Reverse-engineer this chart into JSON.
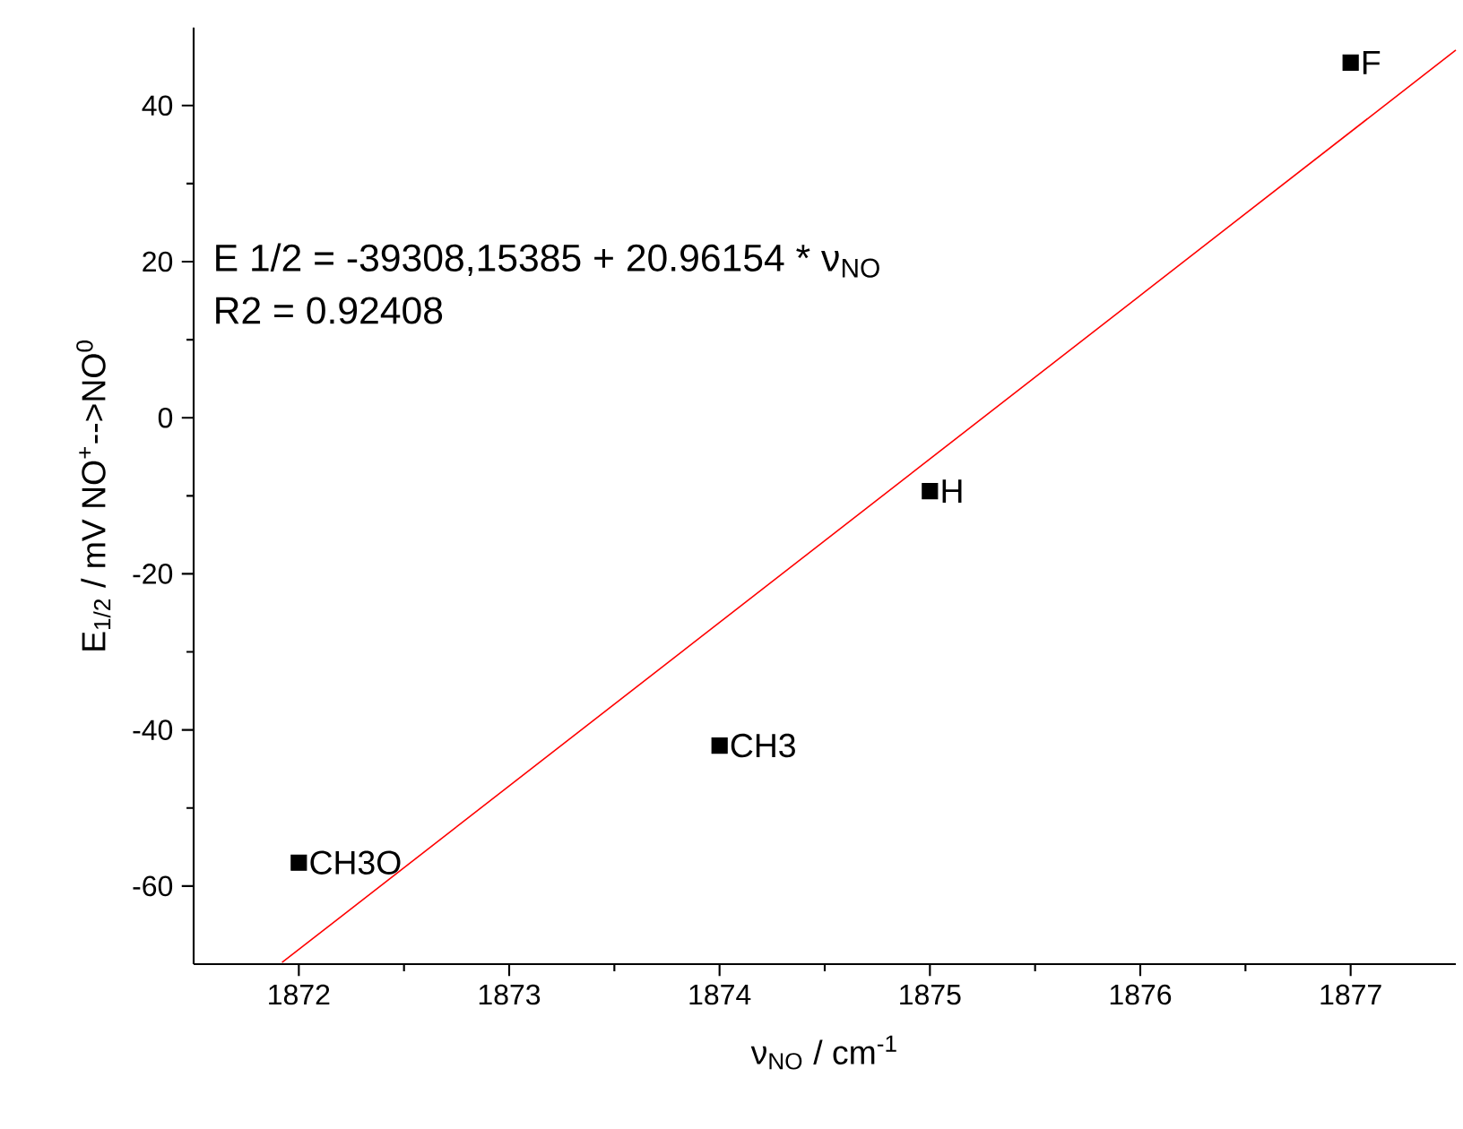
{
  "chart_data": {
    "type": "scatter",
    "xlabel": "ν$_{NO}$ / cm$^{-1}$",
    "ylabel": "E$_{1/2}$ / mV NO$^{+}$-->NO$^{0}$",
    "xlim": [
      1871.5,
      1877.5
    ],
    "ylim": [
      -70,
      50
    ],
    "xticks": [
      1872,
      1873,
      1874,
      1875,
      1876,
      1877
    ],
    "yticks": [
      -60,
      -40,
      -20,
      0,
      20,
      40
    ],
    "grid": false,
    "legend": false,
    "series": [
      {
        "x": [
          1872,
          1874,
          1875,
          1877
        ],
        "values": [
          -57,
          -42,
          -9.4,
          45.5
        ],
        "color": "#000000",
        "marker": "square"
      },
      {
        "type": "line",
        "x": [
          1871.92,
          1877.5
        ],
        "values": [
          -69.8,
          47.1
        ],
        "color": "#ff0000",
        "marker": "none",
        "line_style": "solid"
      }
    ],
    "annotations": [
      "E 1/2 = -39308,15385 + 20.96154 * ν$_{NO}$",
      "R2 = 0.92408",
      {
        "text": "CH3O",
        "x": 1872,
        "y": -57
      },
      {
        "text": "CH3",
        "x": 1874,
        "y": -42
      },
      {
        "text": "H",
        "x": 1875,
        "y": -9.4
      },
      {
        "text": "F",
        "x": 1877,
        "y": 45.5
      }
    ]
  }
}
